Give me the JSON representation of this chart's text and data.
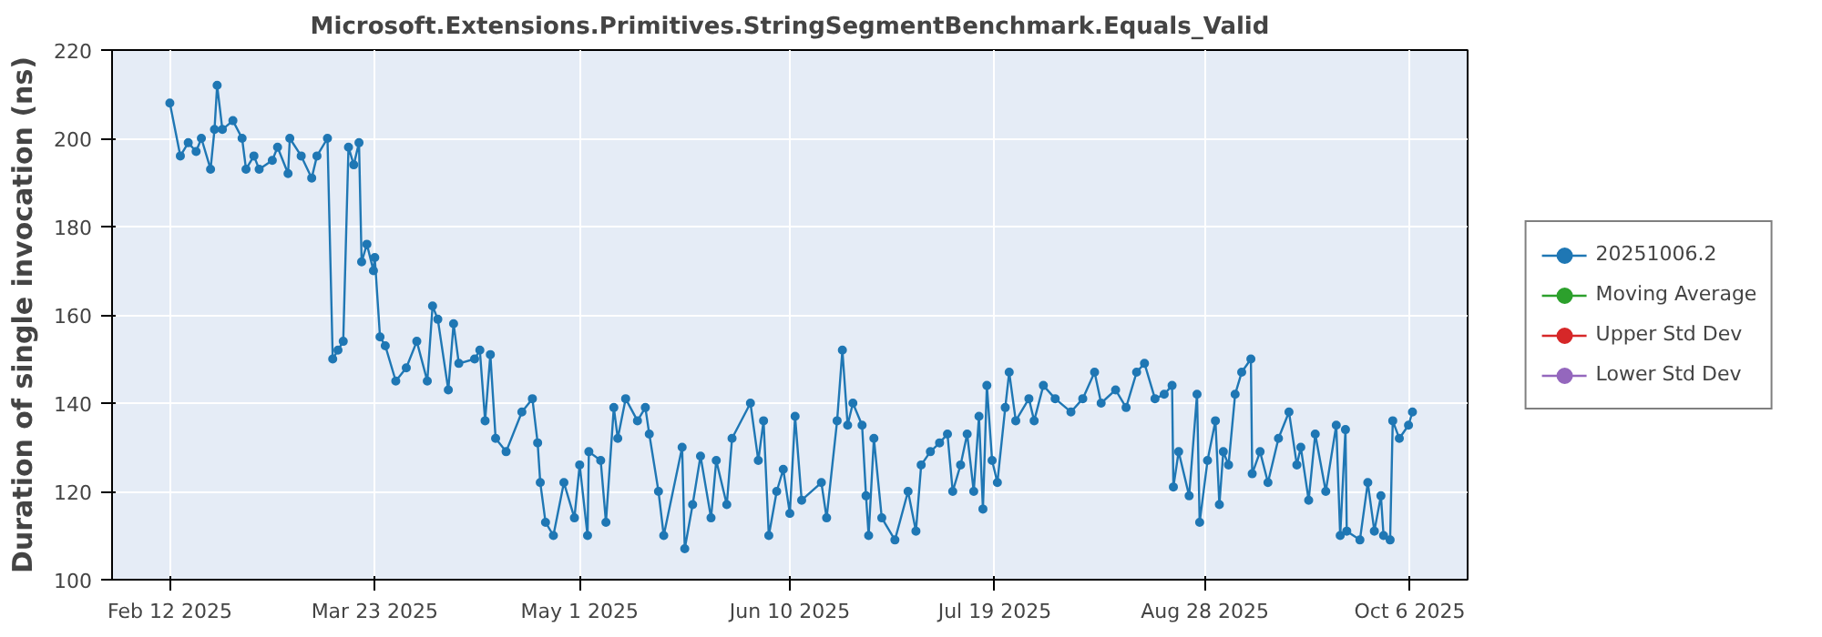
{
  "chart_data": {
    "type": "line",
    "title": "Microsoft.Extensions.Primitives.StringSegmentBenchmark.Equals_Valid",
    "ylabel": "Duration of single invocation (ns)",
    "x": [
      "2025-02-12",
      "2025-02-14",
      "2025-02-15T12:00",
      "2025-02-17",
      "2025-02-18",
      "2025-02-19T18:00",
      "2025-02-20T12:00",
      "2025-02-21",
      "2025-02-22",
      "2025-02-24",
      "2025-02-25T18:00",
      "2025-02-26T12:00",
      "2025-02-28",
      "2025-03-01",
      "2025-03-03T12:00",
      "2025-03-04T12:00",
      "2025-03-06T12:00",
      "2025-03-06T20:00",
      "2025-03-09",
      "2025-03-11",
      "2025-03-12",
      "2025-03-14",
      "2025-03-15",
      "2025-03-16",
      "2025-03-17",
      "2025-03-18",
      "2025-03-19",
      "2025-03-20",
      "2025-03-20T12:00",
      "2025-03-21T12:00",
      "2025-03-22T18:00",
      "2025-03-23",
      "2025-03-24",
      "2025-03-25",
      "2025-03-27",
      "2025-03-29",
      "2025-03-31",
      "2025-04-02",
      "2025-04-03",
      "2025-04-04",
      "2025-04-06",
      "2025-04-07",
      "2025-04-08",
      "2025-04-11",
      "2025-04-12",
      "2025-04-13",
      "2025-04-14",
      "2025-04-15",
      "2025-04-17",
      "2025-04-20",
      "2025-04-22",
      "2025-04-23",
      "2025-04-23T12:00",
      "2025-04-24T12:00",
      "2025-04-26",
      "2025-04-28",
      "2025-04-30",
      "2025-05-01",
      "2025-05-02T12:00",
      "2025-05-02T18:00",
      "2025-05-05",
      "2025-05-06",
      "2025-05-07T12:00",
      "2025-05-08T06:00",
      "2025-05-09T18:00",
      "2025-05-12",
      "2025-05-13T12:00",
      "2025-05-14T06:00",
      "2025-05-16",
      "2025-05-17",
      "2025-05-20T12:00",
      "2025-05-21",
      "2025-05-22T12:00",
      "2025-05-24",
      "2025-05-26",
      "2025-05-27",
      "2025-05-29",
      "2025-05-30",
      "2025-06-02T12:00",
      "2025-06-04",
      "2025-06-05",
      "2025-06-06",
      "2025-06-07T12:00",
      "2025-06-08T18:00",
      "2025-06-10",
      "2025-06-11",
      "2025-06-12T06:00",
      "2025-06-16",
      "2025-06-17",
      "2025-06-19",
      "2025-06-20",
      "2025-06-21",
      "2025-06-22",
      "2025-06-23T18:00",
      "2025-06-24T12:00",
      "2025-06-25",
      "2025-06-26",
      "2025-06-27T12:00",
      "2025-06-30",
      "2025-07-02T12:00",
      "2025-07-04",
      "2025-07-05",
      "2025-07-06T18:00",
      "2025-07-08T12:00",
      "2025-07-10",
      "2025-07-11",
      "2025-07-12T12:00",
      "2025-07-13T18:00",
      "2025-07-15",
      "2025-07-16",
      "2025-07-16T18:00",
      "2025-07-17T12:00",
      "2025-07-18T12:00",
      "2025-07-19T12:00",
      "2025-07-21",
      "2025-07-21T18:00",
      "2025-07-23",
      "2025-07-25T12:00",
      "2025-07-26T12:00",
      "2025-07-28T06:00",
      "2025-07-30T12:00",
      "2025-08-02T12:00",
      "2025-08-04T18:00",
      "2025-08-07",
      "2025-08-08T06:00",
      "2025-08-11",
      "2025-08-13",
      "2025-08-15",
      "2025-08-16T12:00",
      "2025-08-18T12:00",
      "2025-08-20T06:00",
      "2025-08-21T18:00",
      "2025-08-22",
      "2025-08-23",
      "2025-08-25",
      "2025-08-26T12:00",
      "2025-08-27",
      "2025-08-28T12:00",
      "2025-08-30",
      "2025-08-30T18:00",
      "2025-08-31T12:00",
      "2025-09-01T12:00",
      "2025-09-02T18:00",
      "2025-09-04",
      "2025-09-05T18:00",
      "2025-09-06",
      "2025-09-07T12:00",
      "2025-09-09",
      "2025-09-11",
      "2025-09-13",
      "2025-09-14T12:00",
      "2025-09-15T06:00",
      "2025-09-16T18:00",
      "2025-09-18",
      "2025-09-20",
      "2025-09-22",
      "2025-09-22T18:00",
      "2025-09-23T18:00",
      "2025-09-24",
      "2025-09-26T12:00",
      "2025-09-28",
      "2025-09-29T06:00",
      "2025-09-30T12:00",
      "2025-10-01",
      "2025-10-02T06:00",
      "2025-10-02T18:00",
      "2025-10-04",
      "2025-10-05T18:00",
      "2025-10-06T12:00"
    ],
    "series": [
      {
        "name": "20251006.2",
        "color": "#1f77b4",
        "values": [
          208,
          196,
          199,
          197,
          200,
          193,
          202,
          212,
          202,
          204,
          200,
          193,
          196,
          193,
          195,
          198,
          192,
          200,
          196,
          191,
          196,
          200,
          150,
          152,
          154,
          198,
          194,
          199,
          172,
          176,
          170,
          173,
          155,
          153,
          145,
          148,
          154,
          145,
          162,
          159,
          143,
          158,
          149,
          150,
          152,
          136,
          151,
          132,
          129,
          138,
          141,
          131,
          122,
          113,
          110,
          122,
          114,
          126,
          110,
          129,
          127,
          113,
          139,
          132,
          141,
          136,
          139,
          133,
          120,
          110,
          130,
          107,
          117,
          128,
          114,
          127,
          117,
          132,
          140,
          127,
          136,
          110,
          120,
          125,
          115,
          137,
          118,
          122,
          114,
          136,
          152,
          135,
          140,
          135,
          119,
          110,
          132,
          114,
          109,
          120,
          111,
          126,
          129,
          131,
          133,
          120,
          126,
          133,
          120,
          137,
          116,
          144,
          127,
          122,
          139,
          147,
          136,
          141,
          136,
          144,
          141,
          138,
          141,
          147,
          140,
          143,
          139,
          147,
          149,
          141,
          142,
          144,
          121,
          129,
          119,
          142,
          113,
          127,
          136,
          117,
          129,
          126,
          142,
          147,
          150,
          124,
          129,
          122,
          132,
          138,
          126,
          130,
          118,
          133,
          120,
          135,
          110,
          134,
          111,
          109,
          122,
          111,
          119,
          110,
          109,
          136,
          132,
          135,
          138
        ]
      },
      {
        "name": "Moving Average",
        "color": "#2ca02c",
        "values": [
          null,
          null,
          null,
          null,
          null,
          null,
          null,
          null,
          null,
          null,
          null,
          null,
          null,
          null,
          null,
          null,
          null,
          null,
          null,
          null,
          null,
          null,
          null,
          null,
          null,
          null,
          null,
          null,
          null,
          null,
          null,
          null,
          null,
          null,
          null,
          null,
          null,
          null,
          null,
          null,
          null,
          null,
          null,
          null,
          null,
          null,
          null,
          null,
          null,
          null,
          null,
          null,
          null,
          null,
          null,
          null,
          null,
          null,
          null,
          null,
          null,
          null,
          null,
          null,
          null,
          null,
          null,
          null,
          null,
          null,
          null,
          null,
          null,
          null,
          null,
          null,
          null,
          null,
          null,
          null,
          null,
          null,
          null,
          null,
          null,
          null,
          null,
          null,
          null,
          null,
          null,
          null,
          null,
          null,
          null,
          null,
          null,
          null,
          null,
          null,
          null,
          null,
          null,
          null,
          null,
          null,
          null,
          null,
          null,
          null,
          null,
          null,
          null,
          null,
          null,
          null,
          null,
          null,
          null,
          null,
          null,
          null,
          null,
          null,
          null,
          null,
          null,
          null,
          null,
          null,
          null,
          null,
          null,
          null,
          null,
          null,
          null,
          null,
          null,
          null,
          null,
          null,
          null,
          null,
          null,
          null,
          null,
          null,
          null,
          null,
          null,
          null,
          null,
          null,
          null,
          null,
          null,
          null,
          null,
          null,
          null,
          null,
          null,
          null,
          null,
          null,
          null,
          null,
          null
        ]
      },
      {
        "name": "Upper Std Dev",
        "color": "#d62728",
        "values": [
          null,
          null,
          null,
          null,
          null,
          null,
          null,
          null,
          null,
          null,
          null,
          null,
          null,
          null,
          null,
          null,
          null,
          null,
          null,
          null,
          null,
          null,
          null,
          null,
          null,
          null,
          null,
          null,
          null,
          null,
          null,
          null,
          null,
          null,
          null,
          null,
          null,
          null,
          null,
          null,
          null,
          null,
          null,
          null,
          null,
          null,
          null,
          null,
          null,
          null,
          null,
          null,
          null,
          null,
          null,
          null,
          null,
          null,
          null,
          null,
          null,
          null,
          null,
          null,
          null,
          null,
          null,
          null,
          null,
          null,
          null,
          null,
          null,
          null,
          null,
          null,
          null,
          null,
          null,
          null,
          null,
          null,
          null,
          null,
          null,
          null,
          null,
          null,
          null,
          null,
          null,
          null,
          null,
          null,
          null,
          null,
          null,
          null,
          null,
          null,
          null,
          null,
          null,
          null,
          null,
          null,
          null,
          null,
          null,
          null,
          null,
          null,
          null,
          null,
          null,
          null,
          null,
          null,
          null,
          null,
          null,
          null,
          null,
          null,
          null,
          null,
          null,
          null,
          null,
          null,
          null,
          null,
          null,
          null,
          null,
          null,
          null,
          null,
          null,
          null,
          null,
          null,
          null,
          null,
          null,
          null,
          null,
          null,
          null,
          null,
          null,
          null,
          null,
          null,
          null,
          null,
          null,
          null,
          null,
          null,
          null,
          null,
          null,
          null,
          null,
          null,
          null,
          null,
          null
        ]
      },
      {
        "name": "Lower Std Dev",
        "color": "#9467bd",
        "values": [
          null,
          null,
          null,
          null,
          null,
          null,
          null,
          null,
          null,
          null,
          null,
          null,
          null,
          null,
          null,
          null,
          null,
          null,
          null,
          null,
          null,
          null,
          null,
          null,
          null,
          null,
          null,
          null,
          null,
          null,
          null,
          null,
          null,
          null,
          null,
          null,
          null,
          null,
          null,
          null,
          null,
          null,
          null,
          null,
          null,
          null,
          null,
          null,
          null,
          null,
          null,
          null,
          null,
          null,
          null,
          null,
          null,
          null,
          null,
          null,
          null,
          null,
          null,
          null,
          null,
          null,
          null,
          null,
          null,
          null,
          null,
          null,
          null,
          null,
          null,
          null,
          null,
          null,
          null,
          null,
          null,
          null,
          null,
          null,
          null,
          null,
          null,
          null,
          null,
          null,
          null,
          null,
          null,
          null,
          null,
          null,
          null,
          null,
          null,
          null,
          null,
          null,
          null,
          null,
          null,
          null,
          null,
          null,
          null,
          null,
          null,
          null,
          null,
          null,
          null,
          null,
          null,
          null,
          null,
          null,
          null,
          null,
          null,
          null,
          null,
          null,
          null,
          null,
          null,
          null,
          null,
          null,
          null,
          null,
          null,
          null,
          null,
          null,
          null,
          null,
          null,
          null,
          null,
          null,
          null,
          null,
          null,
          null,
          null,
          null,
          null,
          null,
          null,
          null,
          null,
          null,
          null,
          null,
          null,
          null,
          null,
          null,
          null,
          null,
          null,
          null,
          null,
          null,
          null
        ]
      }
    ],
    "xlim": [
      "2025-02-01",
      "2025-10-17"
    ],
    "xticks": [
      {
        "value": "2025-02-12",
        "label": "Feb 12 2025"
      },
      {
        "value": "2025-03-23",
        "label": "Mar 23 2025"
      },
      {
        "value": "2025-05-01",
        "label": "May 1 2025"
      },
      {
        "value": "2025-06-10",
        "label": "Jun 10 2025"
      },
      {
        "value": "2025-07-19",
        "label": "Jul 19 2025"
      },
      {
        "value": "2025-08-28",
        "label": "Aug 28 2025"
      },
      {
        "value": "2025-10-06",
        "label": "Oct 6 2025"
      }
    ],
    "ylim": [
      100,
      220
    ],
    "yticks": [
      100,
      120,
      140,
      160,
      180,
      200,
      220
    ],
    "grid": true,
    "legend": "right",
    "marker": "circle",
    "line_style": "solid"
  }
}
